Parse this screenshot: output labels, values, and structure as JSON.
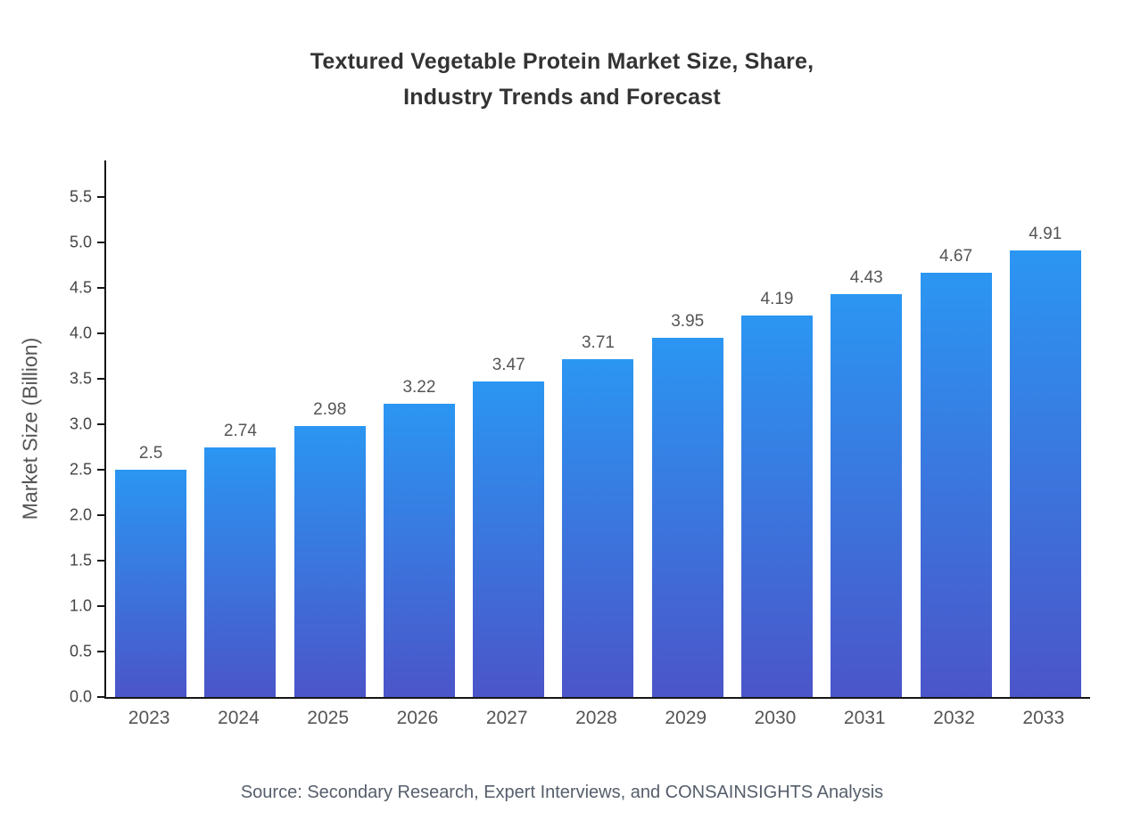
{
  "page": {
    "source_note": "Source: Secondary Research, Expert Interviews, and CONSAINSIGHTS Analysis"
  },
  "chart_data": {
    "type": "bar",
    "title": "Textured Vegetable Protein Market Size, Share,\nIndustry Trends and Forecast",
    "xlabel": "",
    "ylabel": "Market Size (Billion)",
    "categories": [
      "2023",
      "2024",
      "2025",
      "2026",
      "2027",
      "2028",
      "2029",
      "2030",
      "2031",
      "2032",
      "2033"
    ],
    "values": [
      2.5,
      2.74,
      2.98,
      3.22,
      3.47,
      3.71,
      3.95,
      4.19,
      4.43,
      4.67,
      4.91
    ],
    "value_labels": [
      "2.5",
      "2.74",
      "2.98",
      "3.22",
      "3.47",
      "3.71",
      "3.95",
      "4.19",
      "4.43",
      "4.67",
      "4.91"
    ],
    "ylim": [
      0,
      5.9
    ],
    "yticks": [
      0.0,
      0.5,
      1.0,
      1.5,
      2.0,
      2.5,
      3.0,
      3.5,
      4.0,
      4.5,
      5.0,
      5.5
    ],
    "ytick_labels": [
      "0.0",
      "0.5",
      "1.0",
      "1.5",
      "2.0",
      "2.5",
      "3.0",
      "3.5",
      "4.0",
      "4.5",
      "5.0",
      "5.5"
    ],
    "grid": false,
    "legend": false,
    "colors": {
      "bar_gradient_top": "#2b96f2",
      "bar_gradient_bottom": "#4b55c9",
      "axis": "#161616",
      "title_text": "#333333",
      "tick_text": "#444444",
      "value_label_text": "#555555"
    }
  }
}
